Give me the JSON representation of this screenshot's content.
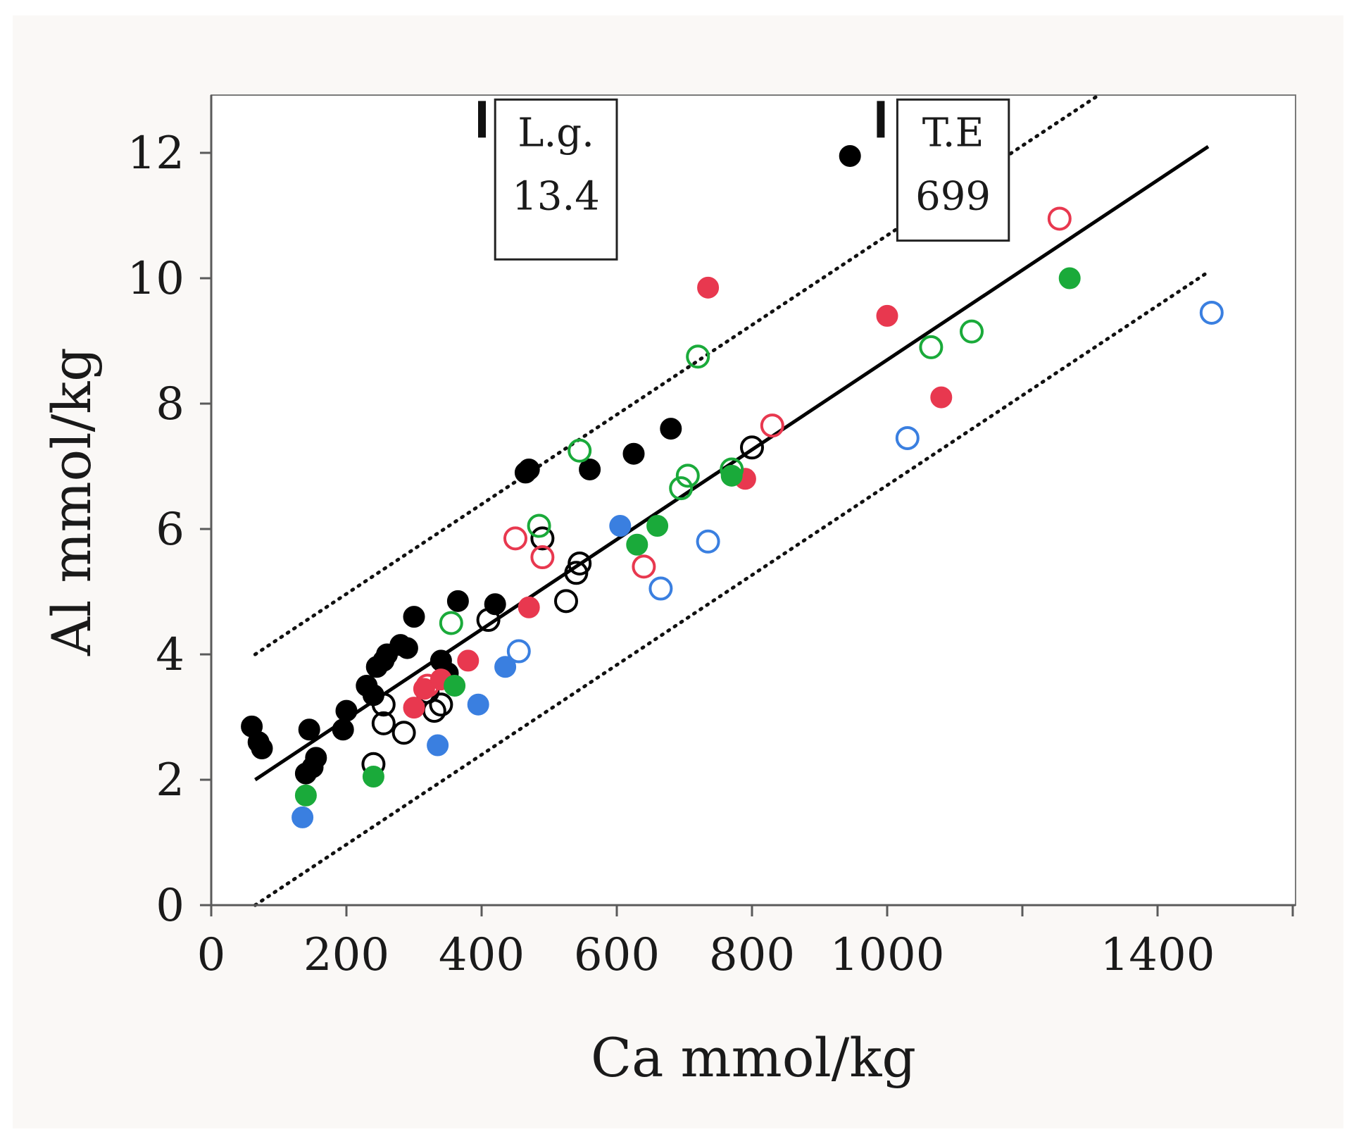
{
  "chart_data": {
    "type": "scatter",
    "xlabel": "Ca mmol/kg",
    "ylabel": "Al mmol/kg",
    "xlim": [
      0,
      1600
    ],
    "ylim": [
      0,
      13
    ],
    "x_ticks": [
      0,
      200,
      400,
      600,
      800,
      1000,
      1200,
      1400,
      1600
    ],
    "x_tick_labels": [
      "0",
      "200",
      "400",
      "600",
      "800",
      "1000",
      "",
      "1400",
      ""
    ],
    "y_ticks": [
      0,
      2,
      4,
      6,
      8,
      10,
      12
    ],
    "y_tick_labels": [
      "0",
      "2",
      "4",
      "6",
      "8",
      "10",
      "12"
    ],
    "grid": false,
    "colors": {
      "black": "#000000",
      "red": "#e8384f",
      "green": "#1aaa3a",
      "blue": "#3a7fe0"
    },
    "series": [
      {
        "name": "black-filled",
        "color": "black",
        "filled": true,
        "points": [
          [
            60,
            2.85
          ],
          [
            70,
            2.6
          ],
          [
            75,
            2.5
          ],
          [
            140,
            2.1
          ],
          [
            145,
            2.8
          ],
          [
            150,
            2.2
          ],
          [
            155,
            2.35
          ],
          [
            195,
            2.8
          ],
          [
            200,
            3.1
          ],
          [
            230,
            3.5
          ],
          [
            240,
            3.35
          ],
          [
            245,
            3.8
          ],
          [
            255,
            3.9
          ],
          [
            260,
            4.0
          ],
          [
            280,
            4.15
          ],
          [
            290,
            4.1
          ],
          [
            300,
            4.6
          ],
          [
            340,
            3.9
          ],
          [
            350,
            3.7
          ],
          [
            365,
            4.85
          ],
          [
            420,
            4.8
          ],
          [
            465,
            6.9
          ],
          [
            470,
            6.95
          ],
          [
            560,
            6.95
          ],
          [
            625,
            7.2
          ],
          [
            680,
            7.6
          ],
          [
            945,
            11.95
          ]
        ]
      },
      {
        "name": "black-open",
        "color": "black",
        "filled": false,
        "points": [
          [
            240,
            2.25
          ],
          [
            255,
            2.9
          ],
          [
            255,
            3.2
          ],
          [
            285,
            2.75
          ],
          [
            320,
            3.4
          ],
          [
            330,
            3.1
          ],
          [
            340,
            3.2
          ],
          [
            410,
            4.55
          ],
          [
            490,
            5.85
          ],
          [
            525,
            4.85
          ],
          [
            540,
            5.3
          ],
          [
            545,
            5.45
          ],
          [
            800,
            7.3
          ]
        ]
      },
      {
        "name": "red-filled",
        "color": "red",
        "filled": true,
        "points": [
          [
            300,
            3.15
          ],
          [
            315,
            3.45
          ],
          [
            340,
            3.6
          ],
          [
            380,
            3.9
          ],
          [
            470,
            4.75
          ],
          [
            735,
            9.85
          ],
          [
            790,
            6.8
          ],
          [
            1000,
            9.4
          ],
          [
            1080,
            8.1
          ]
        ]
      },
      {
        "name": "red-open",
        "color": "red",
        "filled": false,
        "points": [
          [
            320,
            3.5
          ],
          [
            450,
            5.85
          ],
          [
            490,
            5.55
          ],
          [
            640,
            5.4
          ],
          [
            830,
            7.65
          ],
          [
            1255,
            10.95
          ]
        ]
      },
      {
        "name": "green-filled",
        "color": "green",
        "filled": true,
        "points": [
          [
            140,
            1.75
          ],
          [
            240,
            2.05
          ],
          [
            360,
            3.5
          ],
          [
            630,
            5.75
          ],
          [
            660,
            6.05
          ],
          [
            770,
            6.85
          ],
          [
            1270,
            10.0
          ]
        ]
      },
      {
        "name": "green-open",
        "color": "green",
        "filled": false,
        "points": [
          [
            355,
            4.5
          ],
          [
            485,
            6.05
          ],
          [
            545,
            7.25
          ],
          [
            695,
            6.65
          ],
          [
            705,
            6.85
          ],
          [
            720,
            8.75
          ],
          [
            770,
            6.95
          ],
          [
            1065,
            8.9
          ],
          [
            1125,
            9.15
          ]
        ]
      },
      {
        "name": "blue-filled",
        "color": "blue",
        "filled": true,
        "points": [
          [
            135,
            1.4
          ],
          [
            335,
            2.55
          ],
          [
            395,
            3.2
          ],
          [
            435,
            3.8
          ],
          [
            605,
            6.05
          ]
        ]
      },
      {
        "name": "blue-open",
        "color": "blue",
        "filled": false,
        "points": [
          [
            455,
            4.05
          ],
          [
            665,
            5.05
          ],
          [
            735,
            5.8
          ],
          [
            1030,
            7.45
          ],
          [
            1480,
            9.45
          ]
        ]
      }
    ],
    "fit_line": {
      "style": "solid",
      "x": [
        65,
        1475
      ],
      "y": [
        2.0,
        12.1
      ]
    },
    "prediction_bounds": [
      {
        "style": "dotted",
        "x": [
          65,
          1310
        ],
        "y": [
          4.0,
          12.9
        ]
      },
      {
        "style": "dotted",
        "x": [
          65,
          1475
        ],
        "y": [
          0.0,
          10.1
        ]
      }
    ],
    "annotations": [
      {
        "lines": [
          "L.g.",
          "13.4"
        ],
        "marker_x": 400,
        "box_x": [
          420,
          600
        ],
        "box_y": [
          10.3,
          12.85
        ]
      },
      {
        "lines": [
          "T.E",
          "699"
        ],
        "marker_x": 990,
        "box_x": [
          1015,
          1180
        ],
        "box_y": [
          10.6,
          12.85
        ]
      }
    ]
  }
}
